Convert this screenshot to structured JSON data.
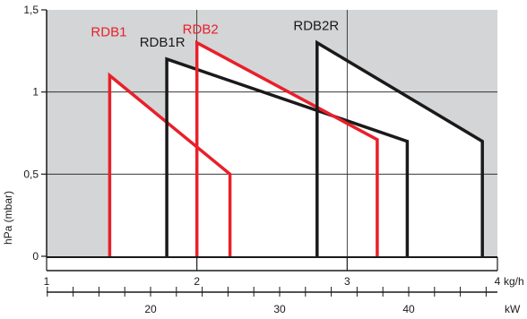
{
  "chart_data": {
    "type": "area",
    "title": "",
    "ylabel": "hPa (mbar)",
    "ylim": [
      0,
      1.5
    ],
    "yticks": [
      {
        "value": 0,
        "label": "0"
      },
      {
        "value": 0.5,
        "label": "0,5"
      },
      {
        "value": 1,
        "label": "1"
      },
      {
        "value": 1.5,
        "label": "1,5"
      }
    ],
    "x_axis_kgh": {
      "unit_label": "kg/h",
      "xlim": [
        1,
        4
      ],
      "ticks": [
        {
          "value": 1,
          "label": "1"
        },
        {
          "value": 2,
          "label": "2"
        },
        {
          "value": 3,
          "label": "3"
        },
        {
          "value": 4,
          "label": "4"
        }
      ]
    },
    "x_axis_kw": {
      "unit_label": "kW",
      "label_ticks": [
        {
          "value": 20,
          "label": "20"
        },
        {
          "value": 30,
          "label": "30"
        },
        {
          "value": 40,
          "label": "40"
        }
      ],
      "minor_every": 2,
      "minor_range": [
        10,
        48
      ]
    },
    "grid": true,
    "series": [
      {
        "name": "RDB1",
        "color": "#e8202a",
        "points": [
          [
            1.42,
            0
          ],
          [
            1.42,
            1.1
          ],
          [
            2.22,
            0.5
          ],
          [
            2.22,
            0
          ]
        ]
      },
      {
        "name": "RDB1R",
        "color": "#1a1a1a",
        "points": [
          [
            1.8,
            0
          ],
          [
            1.8,
            1.2
          ],
          [
            3.4,
            0.7
          ],
          [
            3.4,
            0
          ]
        ]
      },
      {
        "name": "RDB2",
        "color": "#e8202a",
        "points": [
          [
            2.0,
            0
          ],
          [
            2.0,
            1.3
          ],
          [
            3.2,
            0.71
          ],
          [
            3.2,
            0
          ]
        ]
      },
      {
        "name": "RDB2R",
        "color": "#1a1a1a",
        "points": [
          [
            2.8,
            0
          ],
          [
            2.8,
            1.3
          ],
          [
            3.9,
            0.7
          ],
          [
            3.9,
            0
          ]
        ]
      }
    ],
    "series_label_offsets": {
      "RDB1": [
        -1,
        -44
      ],
      "RDB1R": [
        -5,
        -14
      ],
      "RDB2": [
        4,
        -10
      ],
      "RDB2R": [
        -1,
        -14
      ]
    },
    "colors": {
      "plot_bg": "#d3d5d7",
      "grid": "#1a1a1a",
      "red": "#e8202a",
      "black": "#1a1a1a"
    }
  }
}
